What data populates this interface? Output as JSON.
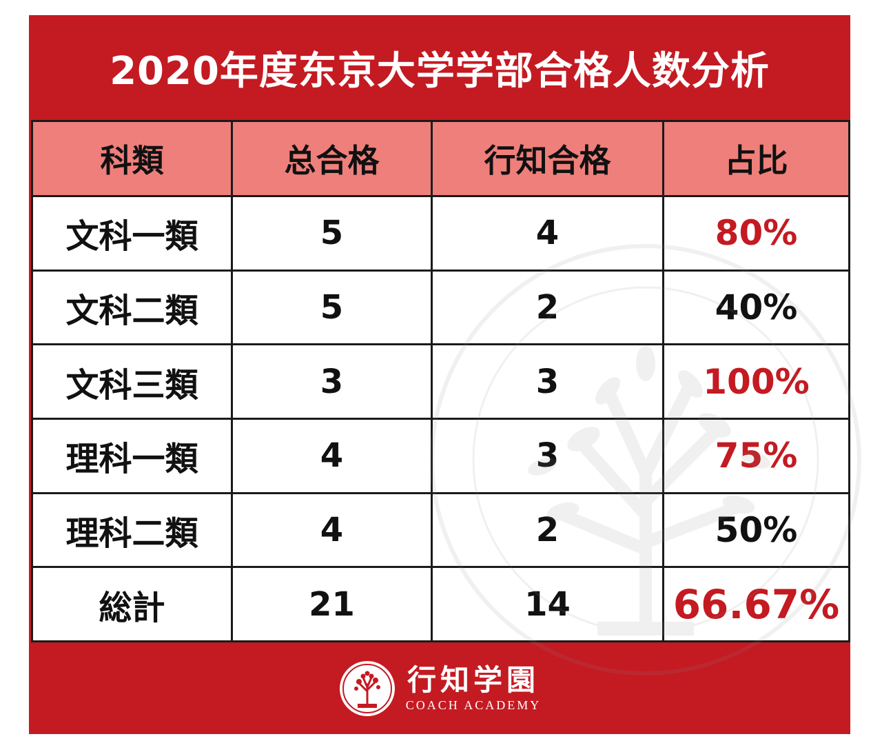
{
  "title": "2020年度东京大学学部合格人数分析",
  "columns": [
    "科類",
    "总合格",
    "行知合格",
    "占比"
  ],
  "rows": [
    {
      "category": "文科一類",
      "total": "5",
      "coach": "4",
      "ratio": "80%",
      "ratio_color": "#c41a22"
    },
    {
      "category": "文科二類",
      "total": "5",
      "coach": "2",
      "ratio": "40%",
      "ratio_color": "#111111"
    },
    {
      "category": "文科三類",
      "total": "3",
      "coach": "3",
      "ratio": "100%",
      "ratio_color": "#c41a22"
    },
    {
      "category": "理科一類",
      "total": "4",
      "coach": "3",
      "ratio": "75%",
      "ratio_color": "#c41a22"
    },
    {
      "category": "理科二類",
      "total": "4",
      "coach": "2",
      "ratio": "50%",
      "ratio_color": "#111111"
    },
    {
      "category": "総計",
      "total": "21",
      "coach": "14",
      "ratio": "66.67%",
      "ratio_color": "#c41a22"
    }
  ],
  "footer": {
    "brand_cn": "行知学園",
    "brand_en": "COACH ACADEMY",
    "logo_icon": "tree-seal-icon"
  },
  "watermark": {
    "icon": "corporation-seal-watermark-icon"
  },
  "colors": {
    "frame": "#c41a22",
    "header_bg": "#ef7f7a",
    "highlight": "#c41a22"
  }
}
